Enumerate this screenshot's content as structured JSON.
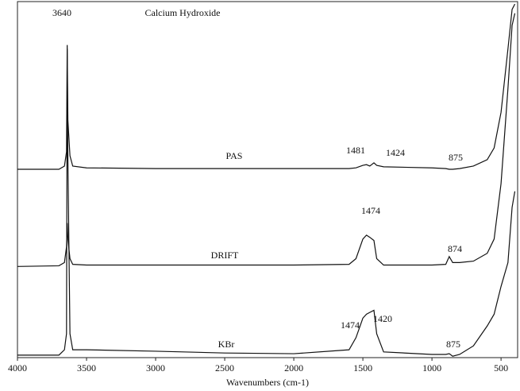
{
  "chart_data": {
    "type": "line",
    "title": "Calcium Hydroxide",
    "x_label": "Wavenumbers (cm-1)",
    "xlim": [
      4000,
      380
    ],
    "xticks": [
      4000,
      3500,
      3000,
      2500,
      2000,
      1500,
      1000,
      500
    ],
    "ylim": [
      0,
      100
    ],
    "x": [
      4000,
      3700,
      3660,
      3645,
      3640,
      3635,
      3620,
      3600,
      3500,
      3000,
      2500,
      2000,
      1600,
      1550,
      1500,
      1474,
      1450,
      1420,
      1400,
      1350,
      1000,
      900,
      875,
      850,
      800,
      700,
      600,
      550,
      500,
      450,
      420,
      400
    ],
    "series": [
      {
        "name": "PAS",
        "color": "#111111",
        "values": [
          52.9,
          52.9,
          53.8,
          57.8,
          87.8,
          66.7,
          56.7,
          53.8,
          53.3,
          53.1,
          53.1,
          53.1,
          53.1,
          53.3,
          54,
          54.2,
          53.8,
          54.7,
          54,
          53.6,
          53.3,
          53.1,
          52.9,
          52.9,
          53.1,
          53.8,
          55.6,
          58.9,
          68.9,
          86.7,
          97.8,
          99.3
        ]
      },
      {
        "name": "DRIFT",
        "color": "#111111",
        "values": [
          25.6,
          25.8,
          26.7,
          31.1,
          37.8,
          33.3,
          27.8,
          26.2,
          26,
          26,
          26,
          26,
          26.2,
          27.8,
          33.3,
          34.4,
          33.8,
          32.9,
          27.8,
          26,
          26,
          26.2,
          28.4,
          26.7,
          26.7,
          27.1,
          29.3,
          33.3,
          48.9,
          75.6,
          93.3,
          96.7
        ]
      },
      {
        "name": "KBr",
        "color": "#111111",
        "values": [
          0.7,
          0.7,
          2.2,
          6.7,
          86.7,
          55.6,
          6.7,
          2.2,
          2.2,
          1.8,
          1.3,
          1.1,
          2.2,
          5.6,
          11.1,
          12.2,
          12.7,
          13.3,
          6.7,
          1.6,
          0.9,
          0.9,
          1.1,
          0.4,
          0.9,
          3.3,
          8.9,
          12.2,
          20,
          26.7,
          42.2,
          46.7
        ]
      }
    ],
    "annotations": [
      "3640",
      "1481",
      "1424",
      "875",
      "1474",
      "874",
      "1474",
      "1420",
      "875"
    ]
  }
}
